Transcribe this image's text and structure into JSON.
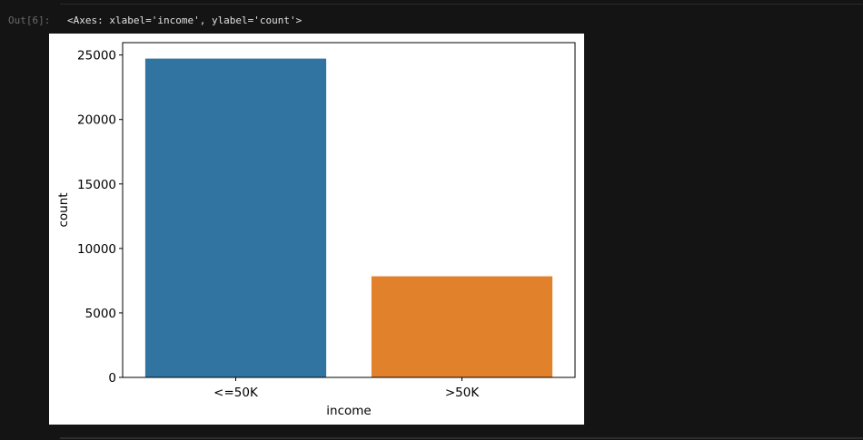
{
  "cell": {
    "prompt": "Out[6]:",
    "repr": "<Axes: xlabel='income', ylabel='count'>"
  },
  "chart_data": {
    "type": "bar",
    "categories": [
      "<=50K",
      ">50K"
    ],
    "values": [
      24720,
      7841
    ],
    "xlabel": "income",
    "ylabel": "count",
    "ylim": [
      0,
      25958
    ],
    "yticks": [
      0,
      5000,
      10000,
      15000,
      20000,
      25000
    ],
    "ytick_labels": [
      "0",
      "5000",
      "10000",
      "15000",
      "20000",
      "25000"
    ],
    "colors": [
      "#3274a1",
      "#e1812c"
    ],
    "grid": false
  }
}
